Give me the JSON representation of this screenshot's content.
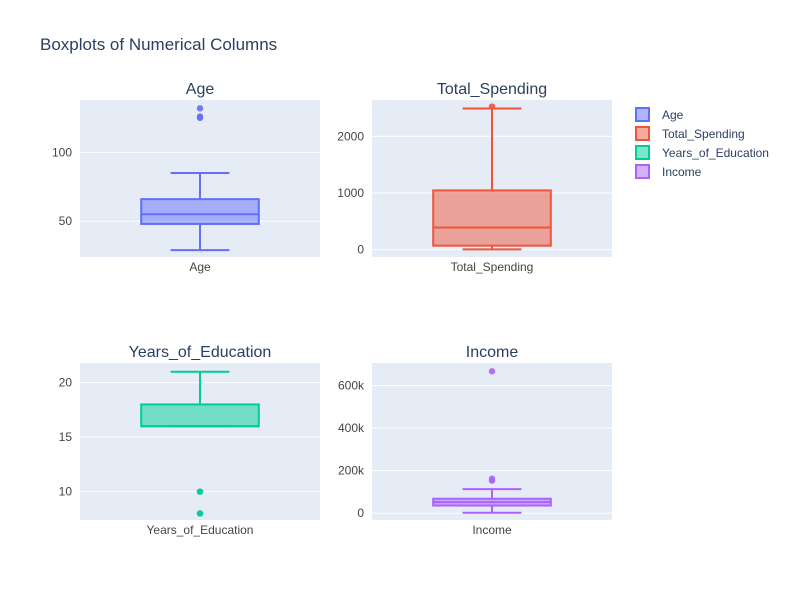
{
  "title": "Boxplots of Numerical Columns",
  "legend": {
    "placement": "top-right",
    "items": [
      {
        "label": "Age",
        "color": "#636efa"
      },
      {
        "label": "Total_Spending",
        "color": "#ef553b"
      },
      {
        "label": "Years_of_Education",
        "color": "#00cc96"
      },
      {
        "label": "Income",
        "color": "#ab63fa"
      }
    ]
  },
  "colors": {
    "plot_background": "#e5ecf6",
    "grid": "#ffffff",
    "text": "#2a3f5f"
  },
  "chart_data": [
    {
      "type": "box",
      "title": "Age",
      "category": "Age",
      "color": "#636efa",
      "ylim": [
        24,
        138
      ],
      "yticks": [
        {
          "value": 50,
          "label": "50"
        },
        {
          "value": 100,
          "label": "100"
        }
      ],
      "stats": {
        "lower_fence": 29,
        "q1": 48,
        "median": 55,
        "q3": 66,
        "upper_fence": 85
      },
      "outliers": [
        125,
        126,
        132
      ]
    },
    {
      "type": "box",
      "title": "Total_Spending",
      "category": "Total_Spending",
      "color": "#ef553b",
      "ylim": [
        -130,
        2640
      ],
      "yticks": [
        {
          "value": 0,
          "label": "0"
        },
        {
          "value": 1000,
          "label": "1000"
        },
        {
          "value": 2000,
          "label": "2000"
        }
      ],
      "stats": {
        "lower_fence": 5,
        "q1": 70,
        "median": 390,
        "q3": 1045,
        "upper_fence": 2490
      },
      "outliers": [
        2525
      ]
    },
    {
      "type": "box",
      "title": "Years_of_Education",
      "category": "Years_of_Education",
      "color": "#00cc96",
      "ylim": [
        7.4,
        21.8
      ],
      "yticks": [
        {
          "value": 10,
          "label": "10"
        },
        {
          "value": 15,
          "label": "15"
        },
        {
          "value": 20,
          "label": "20"
        }
      ],
      "stats": {
        "lower_fence": 16,
        "q1": 16,
        "median": 16,
        "q3": 18,
        "upper_fence": 21
      },
      "outliers": [
        10,
        10,
        8,
        8
      ]
    },
    {
      "type": "box",
      "title": "Income",
      "category": "Income",
      "color": "#ab63fa",
      "ylim": [
        -32000,
        706000
      ],
      "yticks": [
        {
          "value": 0,
          "label": "0"
        },
        {
          "value": 200000,
          "label": "200k"
        },
        {
          "value": 400000,
          "label": "400k"
        },
        {
          "value": 600000,
          "label": "600k"
        }
      ],
      "stats": {
        "lower_fence": 2000,
        "q1": 36000,
        "median": 52000,
        "q3": 68000,
        "upper_fence": 113000
      },
      "outliers": [
        153000,
        162000,
        667000
      ]
    }
  ]
}
